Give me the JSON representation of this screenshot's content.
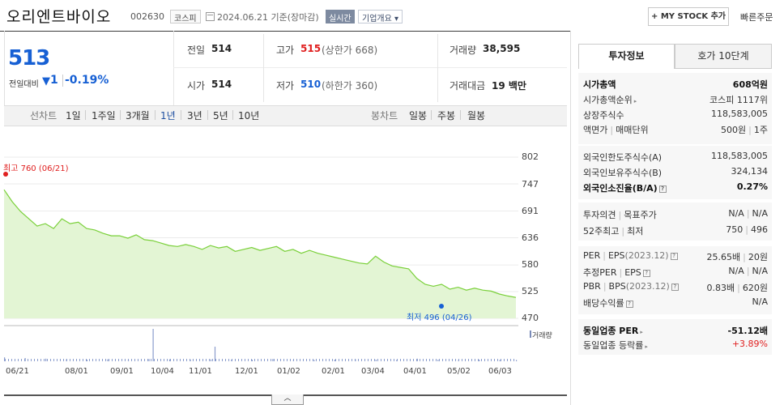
{
  "header": {
    "company_name": "오리엔트바이오",
    "company_code": "002630",
    "market": "코스피",
    "date_text": "2024.06.21 기준(장마감)",
    "realtime": "실시간",
    "company_info": "기업개요",
    "mystock_label": "+ MY STOCK 추가",
    "quick_order": "빠른주문"
  },
  "quote": {
    "price": "513",
    "change_label": "전일대비",
    "change_amount": "1",
    "change_pct": "-0.19%",
    "prev_close_label": "전일",
    "prev_close": "514",
    "open_label": "시가",
    "open": "514",
    "high_label": "고가",
    "high": "515",
    "upper_limit": "(상한가 668)",
    "low_label": "저가",
    "low": "510",
    "lower_limit": "(하한가 360)",
    "volume_label": "거래량",
    "volume": "38,595",
    "amount_label": "거래대금",
    "amount": "19 백만"
  },
  "period_tabs": {
    "line_label": "선차트",
    "line_items": [
      "1일",
      "1주일",
      "3개월",
      "1년",
      "3년",
      "5년",
      "10년"
    ],
    "active": "1년",
    "candle_label": "봉차트",
    "candle_items": [
      "일봉",
      "주봉",
      "월봉"
    ]
  },
  "chart_data": {
    "type": "area",
    "ylim": [
      470,
      802
    ],
    "yticks": [
      "802",
      "747",
      "691",
      "636",
      "580",
      "525",
      "470"
    ],
    "xticks": [
      "06/21",
      "08/01",
      "09/01",
      "10/04",
      "11/01",
      "12/01",
      "01/02",
      "02/01",
      "03/04",
      "04/01",
      "05/02",
      "06/03"
    ],
    "max_label": "최고 760 (06/21)",
    "min_label": "최저 496 (04/26)",
    "volume_label": "거래량",
    "x": [
      0,
      4,
      8,
      12,
      16,
      20,
      24,
      28,
      32,
      36,
      40,
      44,
      48,
      52,
      56,
      60,
      64,
      68,
      72,
      76,
      80,
      84,
      88,
      92,
      96,
      100,
      104,
      108,
      112,
      116,
      120,
      124,
      128,
      132,
      136,
      140,
      144,
      148,
      152,
      156,
      160,
      164,
      168,
      172,
      176,
      180,
      184,
      188,
      192,
      196,
      200,
      204,
      208,
      212,
      216,
      220,
      224,
      228,
      232,
      236,
      240,
      244,
      248
    ],
    "values": [
      735,
      710,
      690,
      675,
      660,
      665,
      655,
      675,
      665,
      668,
      655,
      652,
      645,
      640,
      640,
      635,
      642,
      632,
      630,
      625,
      620,
      618,
      622,
      618,
      612,
      620,
      615,
      618,
      608,
      612,
      616,
      610,
      614,
      618,
      608,
      612,
      604,
      610,
      604,
      600,
      596,
      592,
      588,
      584,
      582,
      598,
      586,
      578,
      575,
      572,
      552,
      540,
      536,
      540,
      530,
      534,
      528,
      532,
      528,
      526,
      520,
      516,
      513
    ],
    "volume_x": [
      0,
      10,
      20,
      30,
      40,
      50,
      60,
      70,
      72,
      80,
      90,
      100,
      102,
      110,
      120,
      130,
      140,
      150,
      160,
      170,
      180,
      190,
      200,
      210,
      220,
      230,
      240,
      248
    ],
    "volume_values": [
      0.12,
      0.1,
      0.08,
      0.06,
      0.05,
      0.06,
      0.05,
      0.07,
      1.0,
      0.06,
      0.05,
      0.06,
      0.45,
      0.05,
      0.05,
      0.07,
      0.05,
      0.04,
      0.05,
      0.06,
      0.05,
      0.04,
      0.08,
      0.05,
      0.04,
      0.05,
      0.04,
      0.04
    ],
    "colors": {
      "line": "#7ad03a",
      "fill": "#e3f5d4",
      "volume": "#8a9ccc"
    }
  },
  "right_panel": {
    "tab_info": "투자정보",
    "tab_orderbook": "호가 10단계",
    "market_cap_label": "시가총액",
    "market_cap": "608억원",
    "market_rank_label": "시가총액순위",
    "market_rank": "코스피 1117위",
    "shares_label": "상장주식수",
    "shares": "118,583,005",
    "par_label": "액면가",
    "unit_label": "매매단위",
    "par": "500원",
    "unit": "1주",
    "foreign_limit_label": "외국인한도주식수(A)",
    "foreign_limit": "118,583,005",
    "foreign_hold_label": "외국인보유주식수(B)",
    "foreign_hold": "324,134",
    "foreign_ratio_label": "외국인소진율(B/A)",
    "foreign_ratio": "0.27%",
    "opinion_label": "투자의견",
    "target_label": "목표주가",
    "opinion": "N/A",
    "target": "N/A",
    "high52_label": "52주최고",
    "low52_label": "최저",
    "high52": "750",
    "low52": "496",
    "per_label": "PER",
    "eps_label": "EPS",
    "eps_year": "(2023.12)",
    "per": "25.65배",
    "eps": "20원",
    "est_per_label": "추정PER",
    "est_eps_label": "EPS",
    "est_per": "N/A",
    "est_eps": "N/A",
    "pbr_label": "PBR",
    "bps_label": "BPS",
    "bps_year": "(2023.12)",
    "pbr": "0.83배",
    "bps": "620원",
    "div_label": "배당수익률",
    "div": "N/A",
    "ind_per_label": "동일업종 PER",
    "ind_per": "-51.12배",
    "ind_rate_label": "동일업종 등락률",
    "ind_rate": "+3.89%"
  }
}
